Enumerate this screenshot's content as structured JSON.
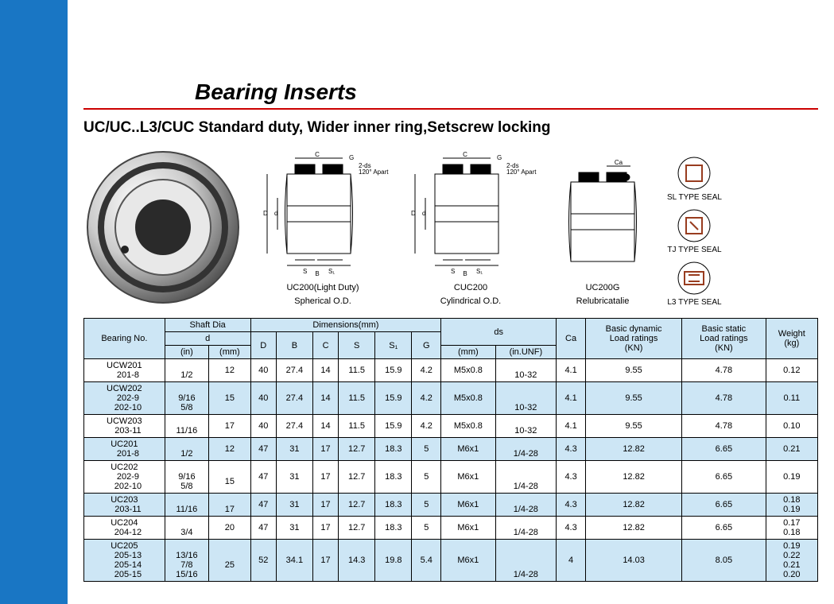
{
  "title": "Bearing Inserts",
  "subtitle": "UC/UC..L3/CUC Standard duty, Wider inner ring,Setscrew locking",
  "diagrams": {
    "d1": {
      "cap1": "UC200(Light Duty)",
      "cap2": "Spherical O.D."
    },
    "d2": {
      "cap1": "CUC200",
      "cap2": "Cylindrical O.D."
    },
    "d3": {
      "cap1": "UC200G",
      "cap2": "Relubricatalie"
    },
    "seal1": "SL TYPE SEAL",
    "seal2": "TJ TYPE SEAL",
    "seal3": "L3 TYPE SEAL",
    "lbl_c": "C",
    "lbl_g": "G",
    "lbl_2ds": "2-ds",
    "lbl_120": "120° Apart",
    "lbl_D": "D",
    "lbl_d": "d",
    "lbl_S": "S",
    "lbl_S1": "S₁",
    "lbl_B": "B",
    "lbl_Ca": "Ca"
  },
  "table": {
    "headers": {
      "bearing_no": "Bearing No.",
      "shaft_dia": "Shaft Dia",
      "d": "d",
      "in": "(in)",
      "mm": "(mm)",
      "dimensions": "Dimensions(mm)",
      "D": "D",
      "B": "B",
      "C": "C",
      "S": "S",
      "S1": "S₁",
      "G": "G",
      "ds": "ds",
      "ds_mm": "(mm)",
      "ds_unf": "(in.UNF)",
      "Ca": "Ca",
      "dyn": "Basic dynamic\nLoad ratings\n(KN)",
      "stat": "Basic static\nLoad ratings\n(KN)",
      "wt": "Weight\n(kg)"
    },
    "rows": [
      {
        "alt": false,
        "bn": "UCW201\n   201-8",
        "in": "\n1/2",
        "mm": "12",
        "D": "40",
        "B": "27.4",
        "C": "14",
        "S": "11.5",
        "S1": "15.9",
        "G": "4.2",
        "ds_mm": "M5x0.8",
        "ds_unf": "\n10-32",
        "Ca": "4.1",
        "dyn": "9.55",
        "stat": "4.78",
        "wt": "0.12"
      },
      {
        "alt": true,
        "bn": "UCW202\n   202-9\n   202-10",
        "in": "\n9/16\n5/8",
        "mm": "15",
        "D": "40",
        "B": "27.4",
        "C": "14",
        "S": "11.5",
        "S1": "15.9",
        "G": "4.2",
        "ds_mm": "M5x0.8",
        "ds_unf": "\n\n10-32",
        "Ca": "4.1",
        "dyn": "9.55",
        "stat": "4.78",
        "wt": "0.11"
      },
      {
        "alt": false,
        "bn": "UCW203\n   203-11",
        "in": "\n11/16",
        "mm": "17",
        "D": "40",
        "B": "27.4",
        "C": "14",
        "S": "11.5",
        "S1": "15.9",
        "G": "4.2",
        "ds_mm": "M5x0.8",
        "ds_unf": "\n10-32",
        "Ca": "4.1",
        "dyn": "9.55",
        "stat": "4.78",
        "wt": "0.10"
      },
      {
        "alt": true,
        "bn": "UC201\n   201-8",
        "in": "\n1/2",
        "mm": "12",
        "D": "47",
        "B": "31",
        "C": "17",
        "S": "12.7",
        "S1": "18.3",
        "G": "5",
        "ds_mm": "M6x1",
        "ds_unf": "\n1/4-28",
        "Ca": "4.3",
        "dyn": "12.82",
        "stat": "6.65",
        "wt": "0.21"
      },
      {
        "alt": false,
        "bn": "UC202\n   202-9\n   202-10",
        "in": "\n9/16\n5/8",
        "mm": "\n15",
        "D": "47",
        "B": "31",
        "C": "17",
        "S": "12.7",
        "S1": "18.3",
        "G": "5",
        "ds_mm": "M6x1",
        "ds_unf": "\n\n1/4-28",
        "Ca": "4.3",
        "dyn": "12.82",
        "stat": "6.65",
        "wt": "0.19"
      },
      {
        "alt": true,
        "bn": "UC203\n   203-11",
        "in": "\n11/16",
        "mm": "\n17",
        "D": "47",
        "B": "31",
        "C": "17",
        "S": "12.7",
        "S1": "18.3",
        "G": "5",
        "ds_mm": "M6x1",
        "ds_unf": "\n1/4-28",
        "Ca": "4.3",
        "dyn": "12.82",
        "stat": "6.65",
        "wt": "0.18\n0.19"
      },
      {
        "alt": false,
        "bn": "UC204\n   204-12",
        "in": "\n3/4",
        "mm": "20",
        "D": "47",
        "B": "31",
        "C": "17",
        "S": "12.7",
        "S1": "18.3",
        "G": "5",
        "ds_mm": "M6x1",
        "ds_unf": "\n1/4-28",
        "Ca": "4.3",
        "dyn": "12.82",
        "stat": "6.65",
        "wt": "0.17\n0.18"
      },
      {
        "alt": true,
        "bn": "UC205\n   205-13\n   205-14\n   205-15",
        "in": "\n13/16\n7/8\n15/16",
        "mm": "\n25",
        "D": "52",
        "B": "34.1",
        "C": "17",
        "S": "14.3",
        "S1": "19.8",
        "G": "5.4",
        "ds_mm": "M6x1",
        "ds_unf": "\n\n\n1/4-28",
        "Ca": "4",
        "dyn": "14.03",
        "stat": "8.05",
        "wt": "0.19\n0.22\n0.21\n0.20"
      }
    ]
  },
  "colors": {
    "sidebar": "#1976c4",
    "rule": "#c00",
    "header_bg": "#cde6f5"
  }
}
